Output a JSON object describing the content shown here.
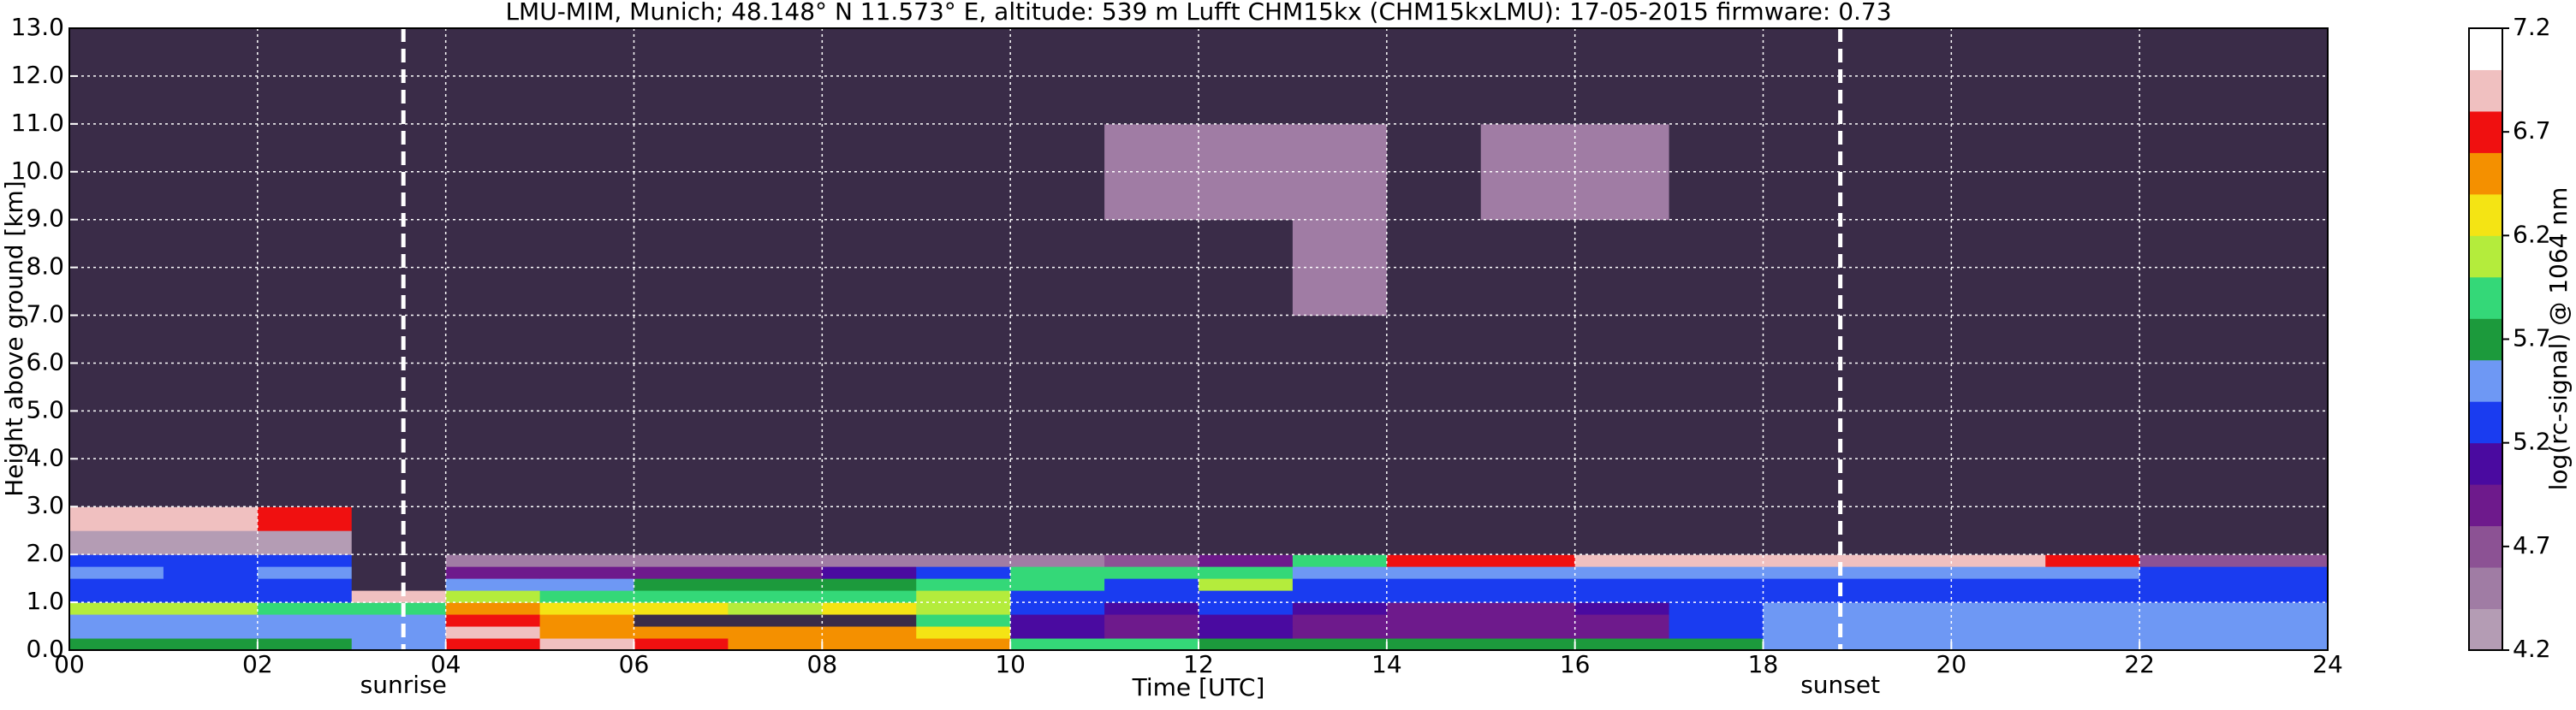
{
  "chart_data": {
    "type": "heatmap",
    "title": "LMU-MIM, Munich; 48.148° N 11.573° E, altitude: 539 m    Lufft CHM15kx (CHM15kxLMU): 17-05-2015    firmware: 0.73",
    "x_label": "Time [UTC]",
    "y_label": "Height above ground [km]",
    "colorbar_label": "log(rc-signal) @ 1064 nm",
    "xlim": [
      0,
      24
    ],
    "ylim": [
      0,
      13
    ],
    "xticks": [
      {
        "value": 0,
        "label": "00"
      },
      {
        "value": 2,
        "label": "02"
      },
      {
        "value": 4,
        "label": "04"
      },
      {
        "value": 6,
        "label": "06"
      },
      {
        "value": 8,
        "label": "08"
      },
      {
        "value": 10,
        "label": "10"
      },
      {
        "value": 12,
        "label": "12"
      },
      {
        "value": 14,
        "label": "14"
      },
      {
        "value": 16,
        "label": "16"
      },
      {
        "value": 18,
        "label": "18"
      },
      {
        "value": 20,
        "label": "20"
      },
      {
        "value": 22,
        "label": "22"
      },
      {
        "value": 24,
        "label": "24"
      }
    ],
    "yticks": [
      {
        "value": 0,
        "label": "0.0"
      },
      {
        "value": 1,
        "label": "1.0"
      },
      {
        "value": 2,
        "label": "2.0"
      },
      {
        "value": 3,
        "label": "3.0"
      },
      {
        "value": 4,
        "label": "4.0"
      },
      {
        "value": 5,
        "label": "5.0"
      },
      {
        "value": 6,
        "label": "6.0"
      },
      {
        "value": 7,
        "label": "7.0"
      },
      {
        "value": 8,
        "label": "8.0"
      },
      {
        "value": 9,
        "label": "9.0"
      },
      {
        "value": 10,
        "label": "10.0"
      },
      {
        "value": 11,
        "label": "11.0"
      },
      {
        "value": 12,
        "label": "12.0"
      },
      {
        "value": 13,
        "label": "13.0"
      }
    ],
    "grid": true,
    "clim": [
      4.2,
      7.2
    ],
    "cticks": [
      4.2,
      4.7,
      5.2,
      5.7,
      6.2,
      6.7,
      7.2
    ],
    "colormap": [
      "#b49cb4",
      "#a07ca4",
      "#8c5294",
      "#6e1a8c",
      "#4a0aa0",
      "#1a3cf0",
      "#6e98f4",
      "#1c9a3c",
      "#34d878",
      "#b4ec3c",
      "#f4e414",
      "#f49000",
      "#f01010",
      "#f0c0c0",
      "#ffffff"
    ],
    "under_color": "#3a2c48",
    "annotations": [
      {
        "text": "sunrise",
        "x": 3.55
      },
      {
        "text": "sunset",
        "x": 18.82
      }
    ],
    "x_edges": [
      0,
      1,
      2,
      3,
      4,
      5,
      6,
      7,
      8,
      9,
      10,
      11,
      12,
      13,
      14,
      15,
      16,
      17,
      18,
      19,
      20,
      21,
      22,
      23,
      24
    ],
    "y_edges": [
      0,
      0.25,
      0.5,
      0.75,
      1,
      1.25,
      1.5,
      1.75,
      2,
      2.5,
      3,
      4,
      5,
      7,
      9,
      11,
      13
    ],
    "z": [
      [
        5.7,
        5.7,
        5.7,
        5.6,
        6.8,
        6.9,
        6.7,
        6.6,
        6.5,
        6.4,
        5.9,
        5.9,
        5.8,
        5.8,
        5.8,
        5.8,
        5.8,
        5.8,
        5.6,
        5.6,
        5.6,
        5.6,
        5.6,
        5.6
      ],
      [
        5.5,
        5.5,
        5.5,
        5.5,
        6.9,
        6.6,
        6.6,
        6.6,
        6.5,
        6.3,
        5.1,
        5.0,
        5.1,
        5.0,
        4.9,
        4.9,
        5.0,
        5.2,
        5.5,
        5.5,
        5.5,
        5.5,
        5.5,
        5.5
      ],
      [
        5.5,
        5.5,
        5.5,
        5.6,
        6.8,
        6.4,
        4.1,
        4.1,
        4.1,
        5.9,
        5.1,
        5.0,
        5.1,
        5.0,
        4.9,
        4.9,
        5.0,
        5.2,
        5.5,
        5.5,
        5.5,
        5.4,
        5.4,
        5.5
      ],
      [
        6.0,
        6.0,
        5.9,
        5.9,
        6.6,
        6.2,
        6.2,
        6.1,
        6.3,
        6.1,
        5.2,
        5.1,
        5.2,
        5.1,
        5.0,
        5.0,
        5.1,
        5.3,
        5.4,
        5.4,
        5.4,
        5.4,
        5.4,
        5.4
      ],
      [
        5.3,
        5.3,
        5.3,
        6.9,
        6.0,
        5.9,
        5.9,
        5.9,
        5.9,
        6.0,
        5.3,
        5.3,
        5.3,
        5.2,
        5.2,
        5.2,
        5.3,
        5.3,
        5.3,
        5.3,
        5.3,
        5.3,
        5.3,
        5.3
      ],
      [
        5.3,
        5.3,
        5.3,
        4.1,
        5.5,
        5.5,
        5.8,
        5.8,
        5.8,
        5.9,
        5.9,
        5.3,
        6.0,
        5.3,
        5.2,
        5.2,
        5.3,
        5.3,
        5.3,
        5.3,
        5.3,
        5.3,
        5.3,
        5.3
      ],
      [
        5.4,
        5.3,
        5.4,
        4.1,
        4.9,
        4.9,
        5.0,
        5.0,
        5.1,
        5.2,
        5.9,
        5.9,
        5.9,
        5.5,
        5.5,
        5.5,
        5.6,
        5.4,
        5.6,
        5.5,
        5.4,
        5.4,
        5.3,
        5.3
      ],
      [
        5.2,
        5.2,
        5.2,
        4.1,
        4.5,
        4.5,
        4.5,
        4.5,
        4.6,
        4.6,
        4.6,
        4.8,
        5.0,
        5.9,
        6.8,
        6.8,
        6.9,
        6.9,
        7.0,
        6.9,
        6.9,
        6.8,
        4.8,
        4.8
      ],
      [
        4.3,
        4.3,
        4.3,
        4.1,
        4.1,
        4.1,
        4.1,
        4.1,
        4.1,
        4.1,
        4.1,
        4.1,
        4.1,
        4.1,
        4.1,
        4.1,
        4.1,
        4.1,
        4.1,
        4.1,
        4.1,
        4.1,
        4.1,
        4.1
      ],
      [
        6.9,
        6.9,
        6.8,
        4.1,
        4.1,
        4.1,
        4.1,
        4.1,
        4.1,
        4.1,
        4.1,
        4.1,
        4.1,
        4.1,
        4.1,
        4.1,
        4.1,
        4.1,
        4.1,
        4.1,
        4.1,
        4.1,
        4.1,
        4.1
      ],
      [
        4.1,
        4.1,
        4.1,
        4.1,
        4.1,
        4.1,
        4.1,
        4.1,
        4.1,
        4.1,
        4.1,
        4.1,
        4.1,
        4.1,
        4.1,
        4.1,
        4.1,
        4.1,
        4.1,
        4.1,
        4.1,
        4.1,
        4.1,
        4.1
      ],
      [
        4.1,
        4.1,
        4.1,
        4.1,
        4.1,
        4.1,
        4.1,
        4.1,
        4.1,
        4.1,
        4.1,
        4.1,
        4.1,
        4.1,
        4.1,
        4.1,
        4.1,
        4.1,
        4.1,
        4.1,
        4.1,
        4.1,
        4.1,
        4.1
      ],
      [
        4.1,
        4.1,
        4.1,
        4.1,
        4.1,
        4.1,
        4.1,
        4.1,
        4.1,
        4.1,
        4.1,
        4.1,
        4.1,
        4.1,
        4.1,
        4.1,
        4.1,
        4.1,
        4.1,
        4.1,
        4.1,
        4.1,
        4.1,
        4.1
      ],
      [
        4.1,
        4.1,
        4.1,
        4.1,
        4.1,
        4.1,
        4.1,
        4.1,
        4.1,
        4.1,
        4.1,
        4.1,
        4.1,
        4.5,
        4.1,
        4.1,
        4.1,
        4.1,
        4.1,
        4.1,
        4.1,
        4.1,
        4.1,
        4.1
      ],
      [
        4.1,
        4.1,
        4.1,
        4.1,
        4.1,
        4.1,
        4.1,
        4.1,
        4.1,
        4.1,
        4.1,
        4.5,
        4.5,
        4.5,
        4.1,
        4.5,
        4.5,
        4.1,
        4.1,
        4.1,
        4.1,
        4.1,
        4.1,
        4.1
      ],
      [
        4.1,
        4.1,
        4.1,
        4.1,
        4.1,
        4.1,
        4.1,
        4.1,
        4.1,
        4.1,
        4.1,
        4.1,
        4.1,
        4.1,
        4.1,
        4.1,
        4.1,
        4.1,
        4.1,
        4.1,
        4.1,
        4.1,
        4.1,
        4.1
      ]
    ]
  }
}
